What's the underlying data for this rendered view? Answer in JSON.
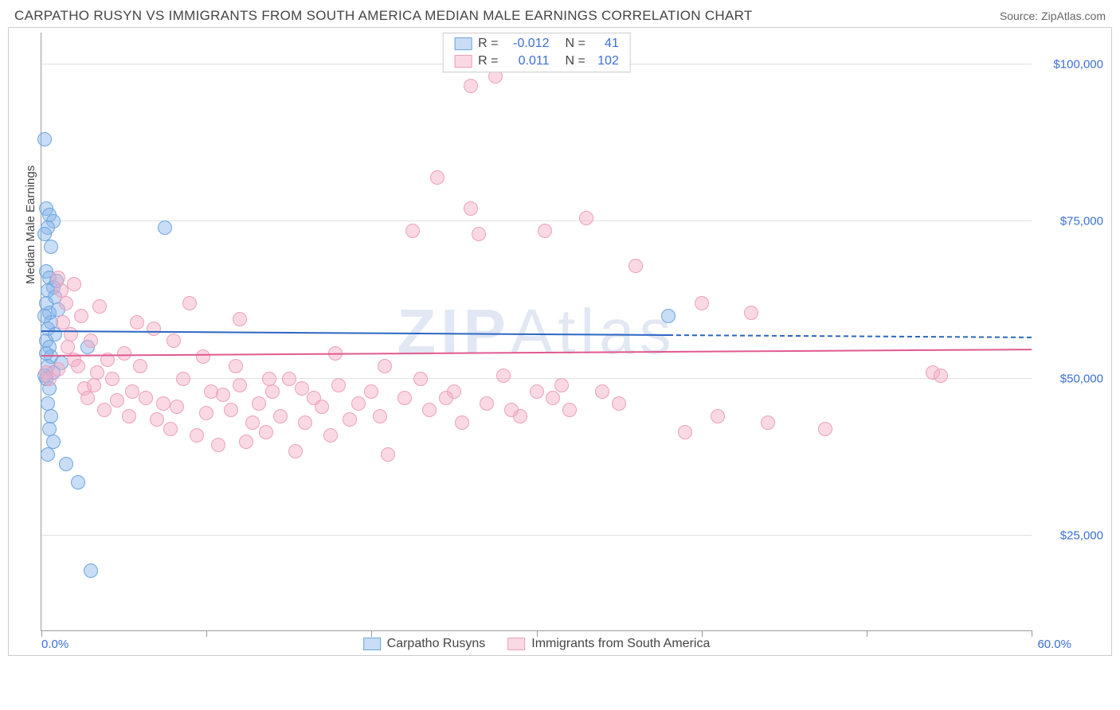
{
  "title": "CARPATHO RUSYN VS IMMIGRANTS FROM SOUTH AMERICA MEDIAN MALE EARNINGS CORRELATION CHART",
  "source": "Source: ZipAtlas.com",
  "watermark": "ZIPAtlas",
  "chart": {
    "type": "scatter",
    "y_axis_label": "Median Male Earnings",
    "xlim": [
      0,
      60
    ],
    "ylim": [
      10000,
      105000
    ],
    "x_tick_positions": [
      0,
      10,
      20,
      30,
      40,
      50,
      60
    ],
    "x_tick_labels": {
      "start": "0.0%",
      "end": "60.0%"
    },
    "y_grid_values": [
      25000,
      50000,
      75000,
      100000
    ],
    "y_tick_labels": [
      "$25,000",
      "$50,000",
      "$75,000",
      "$100,000"
    ],
    "colors": {
      "series_a_fill": "rgba(135, 180, 235, 0.45)",
      "series_a_stroke": "#6da6e0",
      "series_a_line": "#2d66c4",
      "series_b_fill": "rgba(245, 170, 195, 0.45)",
      "series_b_stroke": "#eda0bb",
      "series_b_line": "#e05a8e",
      "axis_text": "#3b6fd6",
      "grid": "#e0e0e0",
      "border": "#cccccc",
      "title_text": "#444444"
    },
    "marker_radius": 9,
    "series": [
      {
        "id": "a",
        "label": "Carpatho Rusyns",
        "R": "-0.012",
        "N": "41",
        "regression": {
          "y_start": 57500,
          "y_end": 56500,
          "solid_until_x": 38,
          "dash_to_x": 60
        },
        "points": [
          [
            0.2,
            88000
          ],
          [
            0.3,
            77000
          ],
          [
            0.5,
            76000
          ],
          [
            0.7,
            75000
          ],
          [
            0.4,
            74000
          ],
          [
            0.2,
            73000
          ],
          [
            0.6,
            71000
          ],
          [
            0.3,
            67000
          ],
          [
            0.5,
            66000
          ],
          [
            0.7,
            64500
          ],
          [
            0.4,
            64000
          ],
          [
            0.8,
            63000
          ],
          [
            0.3,
            62000
          ],
          [
            0.5,
            60500
          ],
          [
            0.6,
            59000
          ],
          [
            0.4,
            58000
          ],
          [
            0.3,
            56000
          ],
          [
            0.5,
            55000
          ],
          [
            0.6,
            53500
          ],
          [
            0.4,
            52000
          ],
          [
            0.7,
            51000
          ],
          [
            0.3,
            50000
          ],
          [
            0.5,
            48500
          ],
          [
            0.4,
            46000
          ],
          [
            0.6,
            44000
          ],
          [
            0.5,
            42000
          ],
          [
            0.7,
            40000
          ],
          [
            0.4,
            38000
          ],
          [
            1.5,
            36500
          ],
          [
            2.2,
            33500
          ],
          [
            2.8,
            55000
          ],
          [
            3.0,
            19500
          ],
          [
            7.5,
            74000
          ],
          [
            38.0,
            60000
          ],
          [
            0.2,
            60000
          ],
          [
            0.3,
            54000
          ],
          [
            0.8,
            57000
          ],
          [
            1.0,
            61000
          ],
          [
            0.2,
            50500
          ],
          [
            1.2,
            52500
          ],
          [
            0.9,
            65500
          ]
        ]
      },
      {
        "id": "b",
        "label": "Immigrants from South America",
        "R": "0.011",
        "N": "102",
        "regression": {
          "y_start": 53500,
          "y_end": 54500,
          "solid_until_x": 60,
          "dash_to_x": 60
        },
        "points": [
          [
            0.3,
            51000
          ],
          [
            0.5,
            50000
          ],
          [
            1.0,
            66000
          ],
          [
            1.2,
            64000
          ],
          [
            1.5,
            62000
          ],
          [
            1.3,
            59000
          ],
          [
            1.6,
            55000
          ],
          [
            1.8,
            57000
          ],
          [
            2.0,
            53000
          ],
          [
            2.2,
            52000
          ],
          [
            2.4,
            60000
          ],
          [
            2.6,
            48500
          ],
          [
            2.8,
            47000
          ],
          [
            3.0,
            56000
          ],
          [
            3.2,
            49000
          ],
          [
            3.4,
            51000
          ],
          [
            3.8,
            45000
          ],
          [
            4.0,
            53000
          ],
          [
            4.3,
            50000
          ],
          [
            4.6,
            46500
          ],
          [
            5.0,
            54000
          ],
          [
            5.3,
            44000
          ],
          [
            5.5,
            48000
          ],
          [
            6.0,
            52000
          ],
          [
            6.3,
            47000
          ],
          [
            6.8,
            58000
          ],
          [
            7.0,
            43500
          ],
          [
            7.4,
            46000
          ],
          [
            7.8,
            42000
          ],
          [
            8.2,
            45500
          ],
          [
            8.6,
            50000
          ],
          [
            9.0,
            62000
          ],
          [
            9.4,
            41000
          ],
          [
            10.0,
            44500
          ],
          [
            10.3,
            48000
          ],
          [
            10.7,
            39500
          ],
          [
            11.0,
            47500
          ],
          [
            11.5,
            45000
          ],
          [
            12.0,
            49000
          ],
          [
            12.4,
            40000
          ],
          [
            12.8,
            43000
          ],
          [
            13.2,
            46000
          ],
          [
            13.6,
            41500
          ],
          [
            14.0,
            48000
          ],
          [
            14.5,
            44000
          ],
          [
            15.0,
            50000
          ],
          [
            15.4,
            38500
          ],
          [
            16.0,
            43000
          ],
          [
            16.5,
            47000
          ],
          [
            17.0,
            45500
          ],
          [
            17.5,
            41000
          ],
          [
            18.0,
            49000
          ],
          [
            18.7,
            43500
          ],
          [
            19.2,
            46000
          ],
          [
            20.0,
            48000
          ],
          [
            20.5,
            44000
          ],
          [
            21.0,
            38000
          ],
          [
            22.0,
            47000
          ],
          [
            22.5,
            73500
          ],
          [
            23.0,
            50000
          ],
          [
            23.5,
            45000
          ],
          [
            24.0,
            82000
          ],
          [
            25.0,
            48000
          ],
          [
            25.5,
            43000
          ],
          [
            26.0,
            77000
          ],
          [
            26.5,
            73000
          ],
          [
            27.0,
            46000
          ],
          [
            27.5,
            98000
          ],
          [
            28.0,
            50500
          ],
          [
            29.0,
            44000
          ],
          [
            30.0,
            48000
          ],
          [
            30.5,
            73500
          ],
          [
            31.0,
            47000
          ],
          [
            32.0,
            45000
          ],
          [
            33.0,
            75500
          ],
          [
            34.0,
            48000
          ],
          [
            35.0,
            46000
          ],
          [
            36.0,
            68000
          ],
          [
            39.0,
            41500
          ],
          [
            40.0,
            62000
          ],
          [
            41.0,
            44000
          ],
          [
            44.0,
            43000
          ],
          [
            47.5,
            42000
          ],
          [
            54.0,
            51000
          ],
          [
            54.5,
            50500
          ],
          [
            2.0,
            65000
          ],
          [
            3.5,
            61500
          ],
          [
            5.8,
            59000
          ],
          [
            8.0,
            56000
          ],
          [
            9.8,
            53500
          ],
          [
            11.8,
            52000
          ],
          [
            13.8,
            50000
          ],
          [
            15.8,
            48500
          ],
          [
            17.8,
            54000
          ],
          [
            20.8,
            52000
          ],
          [
            24.5,
            47000
          ],
          [
            28.5,
            45000
          ],
          [
            31.5,
            49000
          ],
          [
            26.0,
            96500
          ],
          [
            12.0,
            59500
          ],
          [
            43.0,
            60500
          ],
          [
            1.0,
            51500
          ]
        ]
      }
    ]
  }
}
